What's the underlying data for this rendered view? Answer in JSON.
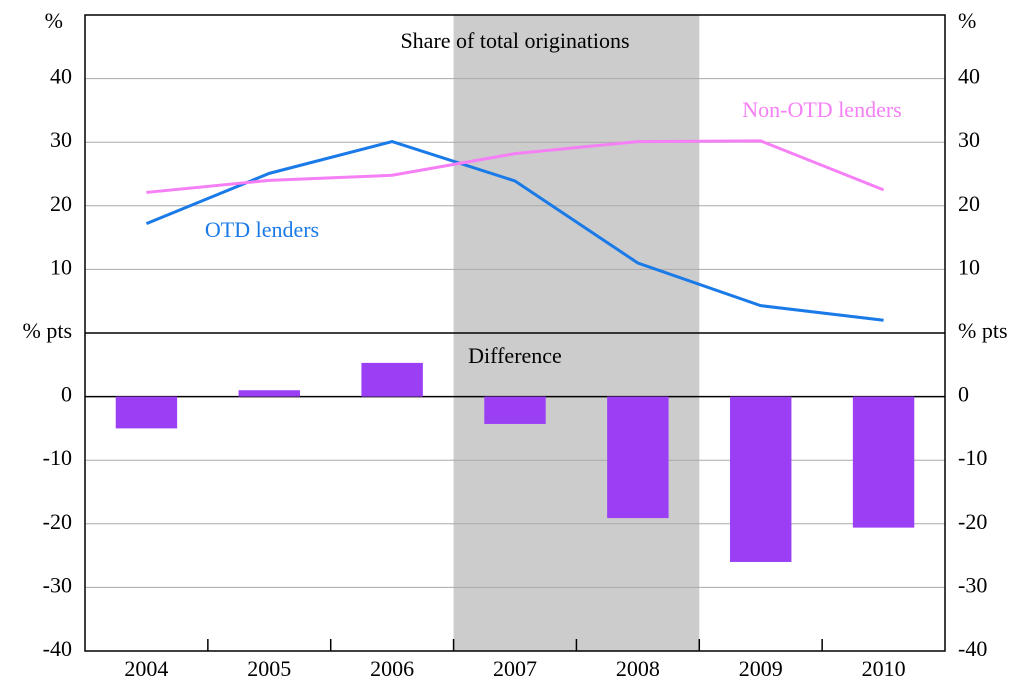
{
  "chart_data": [
    {
      "type": "line",
      "title": "Share of total originations",
      "y_unit": "%",
      "ylim": [
        0,
        50
      ],
      "yticks": [
        10,
        20,
        30,
        40
      ],
      "grid": true,
      "series": [
        {
          "name": "OTD lenders",
          "color": "#1a7ae8",
          "values": [
            17.2,
            25.1,
            30.1,
            23.9,
            11.0,
            4.3,
            2.0
          ]
        },
        {
          "name": "Non-OTD lenders",
          "color": "#f57ff5",
          "values": [
            22.1,
            24.0,
            24.8,
            28.2,
            30.1,
            30.2,
            22.5
          ]
        }
      ]
    },
    {
      "type": "bar",
      "title": "Difference",
      "y_unit": "% pts",
      "categories": [
        "2004",
        "2005",
        "2006",
        "2007",
        "2008",
        "2009",
        "2010"
      ],
      "values": [
        -5.0,
        1.0,
        5.3,
        -4.3,
        -19.1,
        -26.0,
        -20.6
      ],
      "color": "#9b3ff5",
      "ylim": [
        -40,
        10
      ],
      "yticks": [
        -40,
        -30,
        -20,
        -10,
        0
      ],
      "grid": true,
      "shaded": [
        "2007",
        "2008"
      ],
      "shade_color": "#cccccc"
    }
  ]
}
